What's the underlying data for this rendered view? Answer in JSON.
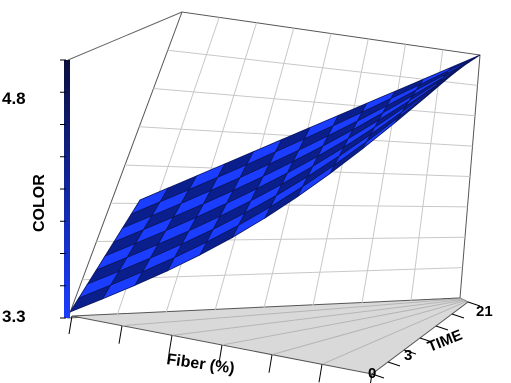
{
  "chart_data": {
    "type": "surface",
    "title": "",
    "zlabel": "COLOR",
    "xlabel": "Fiber (%)",
    "ylabel": "TIME",
    "z_ticks": [
      "4.8",
      "3.3"
    ],
    "zlim": [
      3.3,
      4.8
    ],
    "x_ticks": [
      "0"
    ],
    "y_ticks": [
      "3",
      "21"
    ],
    "ylim": [
      3,
      21
    ],
    "grid": true,
    "colormap": [
      "#0a1f8c",
      "#1a3dff"
    ],
    "surface": {
      "description_rows": "rows = TIME from 3 to 21, columns = Fiber index from high to 0",
      "corner_values": {
        "min": 3.3,
        "max": 4.8
      }
    }
  }
}
